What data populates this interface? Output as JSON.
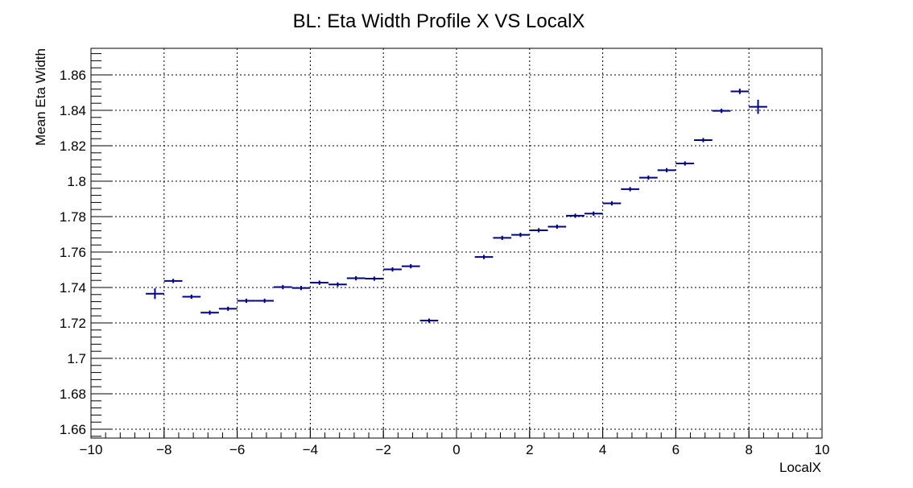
{
  "chart_data": {
    "type": "scatter",
    "title": "BL: Eta Width Profile X VS LocalX",
    "xlabel": "LocalX",
    "ylabel": "Mean Eta Width",
    "xlim": [
      -10,
      10
    ],
    "ylim": [
      1.655,
      1.875
    ],
    "xticks": [
      -10,
      -8,
      -6,
      -4,
      -2,
      0,
      2,
      4,
      6,
      8,
      10
    ],
    "xtick_labels": [
      "−10",
      "−8",
      "−6",
      "−4",
      "−2",
      "0",
      "2",
      "4",
      "6",
      "8",
      "10"
    ],
    "yticks": [
      1.66,
      1.68,
      1.7,
      1.72,
      1.74,
      1.76,
      1.78,
      1.8,
      1.82,
      1.84,
      1.86
    ],
    "ytick_labels": [
      "1.66",
      "1.68",
      "1.7",
      "1.72",
      "1.74",
      "1.76",
      "1.78",
      "1.8",
      "1.82",
      "1.84",
      "1.86"
    ],
    "grid": true,
    "bin_width": 0.5,
    "series": [
      {
        "color": "#000080",
        "points": [
          {
            "x": -8.25,
            "y": 1.7365,
            "yerr": 0.003
          },
          {
            "x": -7.75,
            "y": 1.7437,
            "yerr": 0.0012
          },
          {
            "x": -7.25,
            "y": 1.7348,
            "yerr": 0.0012
          },
          {
            "x": -6.75,
            "y": 1.7258,
            "yerr": 0.0012
          },
          {
            "x": -6.25,
            "y": 1.728,
            "yerr": 0.0012
          },
          {
            "x": -5.75,
            "y": 1.7325,
            "yerr": 0.0012
          },
          {
            "x": -5.25,
            "y": 1.7325,
            "yerr": 0.0012
          },
          {
            "x": -4.75,
            "y": 1.7402,
            "yerr": 0.0012
          },
          {
            "x": -4.25,
            "y": 1.7397,
            "yerr": 0.0012
          },
          {
            "x": -3.75,
            "y": 1.7427,
            "yerr": 0.0012
          },
          {
            "x": -3.25,
            "y": 1.7417,
            "yerr": 0.0012
          },
          {
            "x": -2.75,
            "y": 1.7452,
            "yerr": 0.0012
          },
          {
            "x": -2.25,
            "y": 1.745,
            "yerr": 0.0012
          },
          {
            "x": -1.75,
            "y": 1.7502,
            "yerr": 0.0012
          },
          {
            "x": -1.25,
            "y": 1.752,
            "yerr": 0.0012
          },
          {
            "x": -0.75,
            "y": 1.7213,
            "yerr": 0.0012
          },
          {
            "x": 0.75,
            "y": 1.7572,
            "yerr": 0.0012
          },
          {
            "x": 1.25,
            "y": 1.768,
            "yerr": 0.0012
          },
          {
            "x": 1.75,
            "y": 1.7697,
            "yerr": 0.0012
          },
          {
            "x": 2.25,
            "y": 1.7723,
            "yerr": 0.0012
          },
          {
            "x": 2.75,
            "y": 1.7743,
            "yerr": 0.0012
          },
          {
            "x": 3.25,
            "y": 1.7805,
            "yerr": 0.0012
          },
          {
            "x": 3.75,
            "y": 1.7817,
            "yerr": 0.0012
          },
          {
            "x": 4.25,
            "y": 1.7875,
            "yerr": 0.0012
          },
          {
            "x": 4.75,
            "y": 1.7955,
            "yerr": 0.0012
          },
          {
            "x": 5.25,
            "y": 1.802,
            "yerr": 0.0012
          },
          {
            "x": 5.75,
            "y": 1.8062,
            "yerr": 0.0012
          },
          {
            "x": 6.25,
            "y": 1.81,
            "yerr": 0.0012
          },
          {
            "x": 6.75,
            "y": 1.8232,
            "yerr": 0.0012
          },
          {
            "x": 7.25,
            "y": 1.8397,
            "yerr": 0.0012
          },
          {
            "x": 7.75,
            "y": 1.8507,
            "yerr": 0.0015
          },
          {
            "x": 8.25,
            "y": 1.842,
            "yerr": 0.004
          }
        ]
      }
    ]
  }
}
